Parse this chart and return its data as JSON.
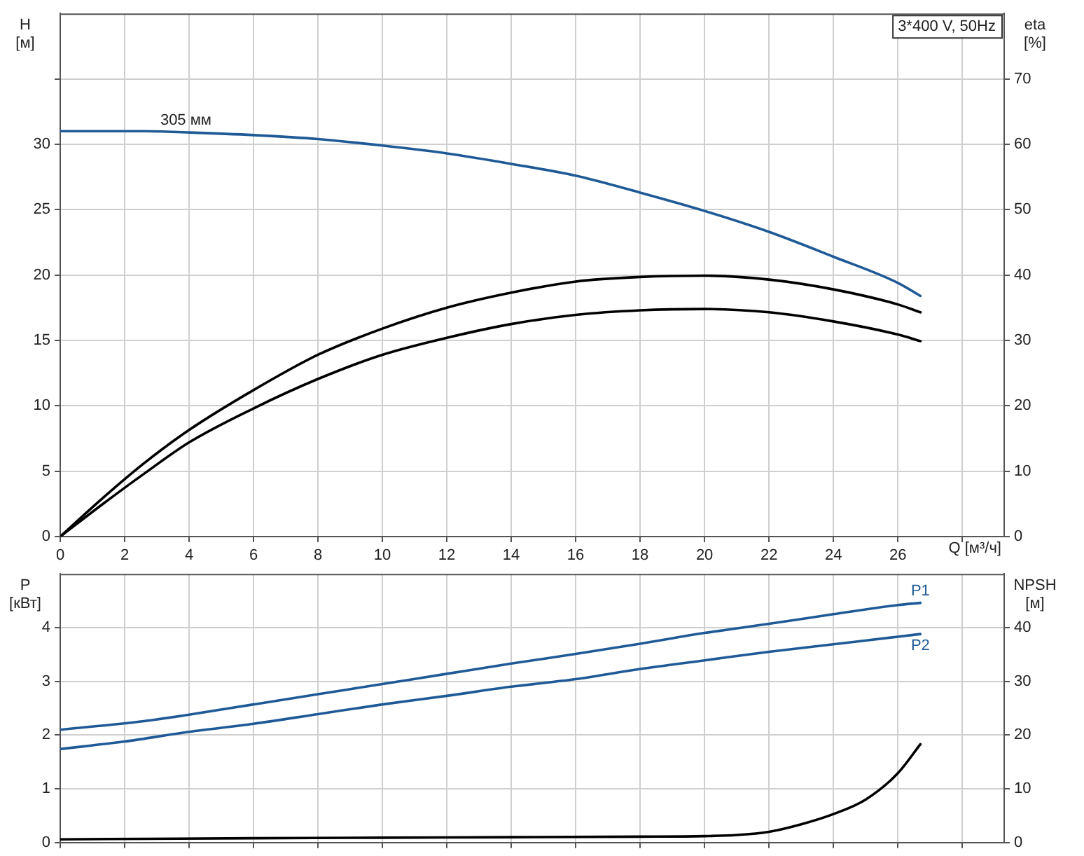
{
  "chart_data": [
    {
      "type": "line",
      "title": "3*400 V, 50Hz",
      "xlabel": "Q [м³/ч]",
      "ylabel": "H [м]",
      "y2label": "eta [%]",
      "xlim": [
        0,
        29.3
      ],
      "xticks": [
        0,
        2,
        4,
        6,
        8,
        10,
        12,
        14,
        16,
        18,
        20,
        22,
        24,
        26,
        {
          "value": 28,
          "label": null
        }
      ],
      "ylim": [
        0,
        40
      ],
      "yticks": [
        0,
        5,
        10,
        15,
        20,
        25,
        30,
        {
          "value": 35,
          "label": null
        }
      ],
      "y2lim": [
        0,
        80
      ],
      "y2ticks": [
        0,
        10,
        20,
        30,
        40,
        50,
        60,
        70
      ],
      "grid": true,
      "legend": false,
      "marker": "none",
      "line_style": "solid",
      "annotations": [
        {
          "text": "305 мм",
          "x": 3.9,
          "y": 31.0
        }
      ],
      "series": [
        {
          "color": "#1f5a96",
          "x": [
            0,
            2.6,
            4,
            6,
            8,
            10,
            12,
            14,
            16,
            18,
            20,
            22,
            24,
            26,
            26.7
          ],
          "values": [
            31.0,
            31.0,
            30.9,
            30.7,
            30.4,
            29.9,
            29.3,
            28.5,
            27.6,
            26.3,
            24.9,
            23.3,
            21.4,
            19.4,
            18.4
          ]
        },
        {
          "color": "#000000",
          "axis": "y2",
          "x": [
            0,
            1.3,
            2.6,
            4,
            6,
            8,
            10,
            12,
            14,
            16,
            18,
            20,
            22,
            24,
            26,
            26.7
          ],
          "values": [
            0,
            5.8,
            11.2,
            16.3,
            22.4,
            27.8,
            31.8,
            35.0,
            37.3,
            39.0,
            39.7,
            39.9,
            39.3,
            37.8,
            35.5,
            34.3
          ]
        },
        {
          "color": "#000000",
          "axis": "y2",
          "x": [
            0,
            1.3,
            2.6,
            4,
            6,
            8,
            10,
            12,
            14,
            16,
            18,
            20,
            22,
            24,
            26,
            26.7
          ],
          "values": [
            0,
            4.9,
            9.6,
            14.4,
            19.6,
            24.1,
            27.8,
            30.4,
            32.5,
            33.9,
            34.6,
            34.8,
            34.3,
            32.9,
            30.9,
            29.9
          ]
        }
      ]
    },
    {
      "type": "line",
      "ylabel": "P [кВт]",
      "y2label": "NPSH [м]",
      "xlim": [
        0,
        29.3
      ],
      "xticks": [
        0,
        2,
        4,
        6,
        8,
        10,
        12,
        14,
        16,
        18,
        20,
        22,
        24,
        26,
        28
      ],
      "ylim": [
        0,
        5
      ],
      "yticks": [
        0,
        1,
        2,
        3,
        4
      ],
      "y2lim": [
        0,
        50
      ],
      "y2ticks": [
        0,
        10,
        20,
        30,
        40
      ],
      "grid": true,
      "legend": false,
      "marker": "none",
      "line_style": "solid",
      "tick_labels": "y",
      "series": [
        {
          "name": "P1",
          "color": "#1f5a96",
          "x": [
            0,
            2.6,
            4,
            6,
            8,
            10,
            12,
            14,
            16,
            18,
            20,
            22,
            24,
            26,
            26.7
          ],
          "values": [
            2.1,
            2.26,
            2.38,
            2.57,
            2.76,
            2.95,
            3.14,
            3.33,
            3.51,
            3.7,
            3.9,
            4.07,
            4.25,
            4.42,
            4.46
          ]
        },
        {
          "name": "P2",
          "color": "#1f5a96",
          "x": [
            0,
            2,
            4,
            6,
            8,
            10,
            12,
            14,
            16,
            18,
            20,
            22,
            24,
            26,
            26.7
          ],
          "values": [
            1.74,
            1.88,
            2.06,
            2.21,
            2.39,
            2.57,
            2.73,
            2.9,
            3.04,
            3.23,
            3.39,
            3.55,
            3.69,
            3.83,
            3.88
          ]
        },
        {
          "color": "#000000",
          "axis": "y2",
          "x": [
            0,
            2.6,
            6,
            10,
            14,
            18,
            20,
            21,
            22,
            23,
            24,
            25,
            26,
            26.7
          ],
          "values": [
            0.6,
            0.7,
            0.8,
            0.9,
            1.0,
            1.1,
            1.2,
            1.4,
            2.0,
            3.4,
            5.3,
            8.0,
            12.9,
            18.3
          ]
        }
      ]
    }
  ]
}
